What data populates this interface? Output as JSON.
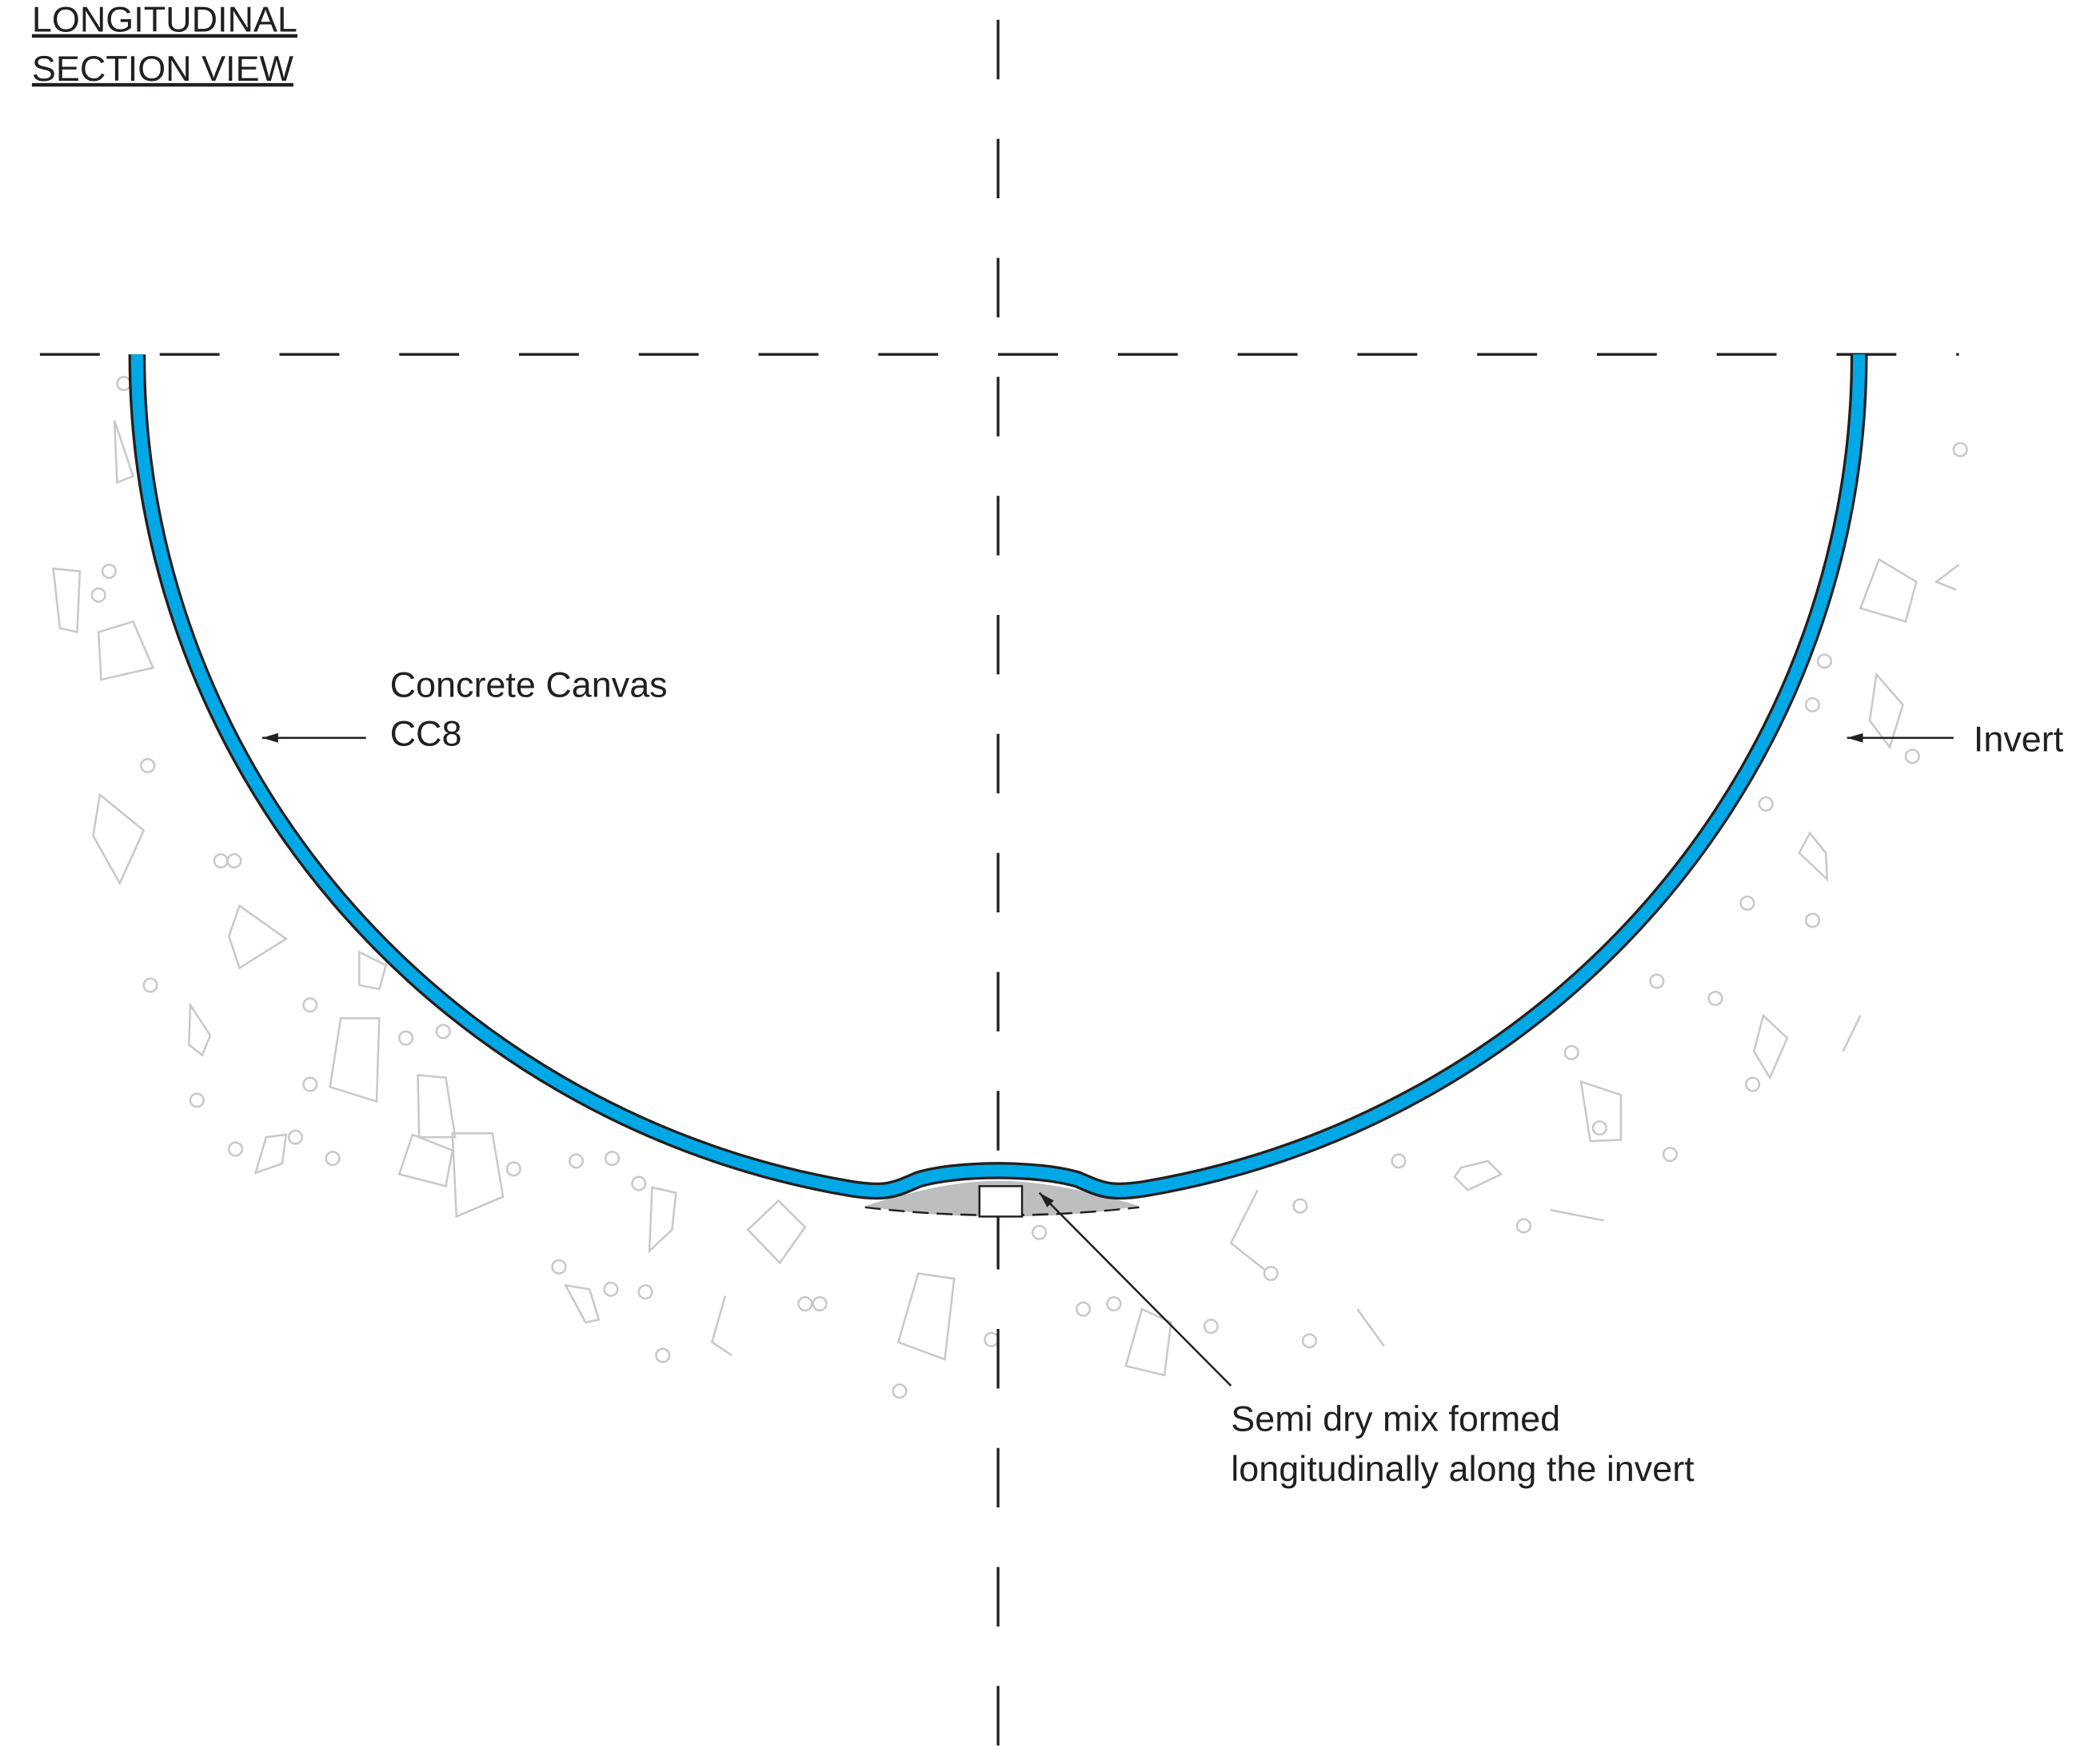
{
  "title": {
    "line1": "LONGITUDINAL",
    "line2": "SECTION VIEW"
  },
  "labels": {
    "lining": {
      "line1": "Concrete Canvas",
      "line2": "CC8"
    },
    "invert": "Invert",
    "mix": {
      "line1": "Semi dry mix formed",
      "line2": "longitudinally along the invert"
    }
  }
}
